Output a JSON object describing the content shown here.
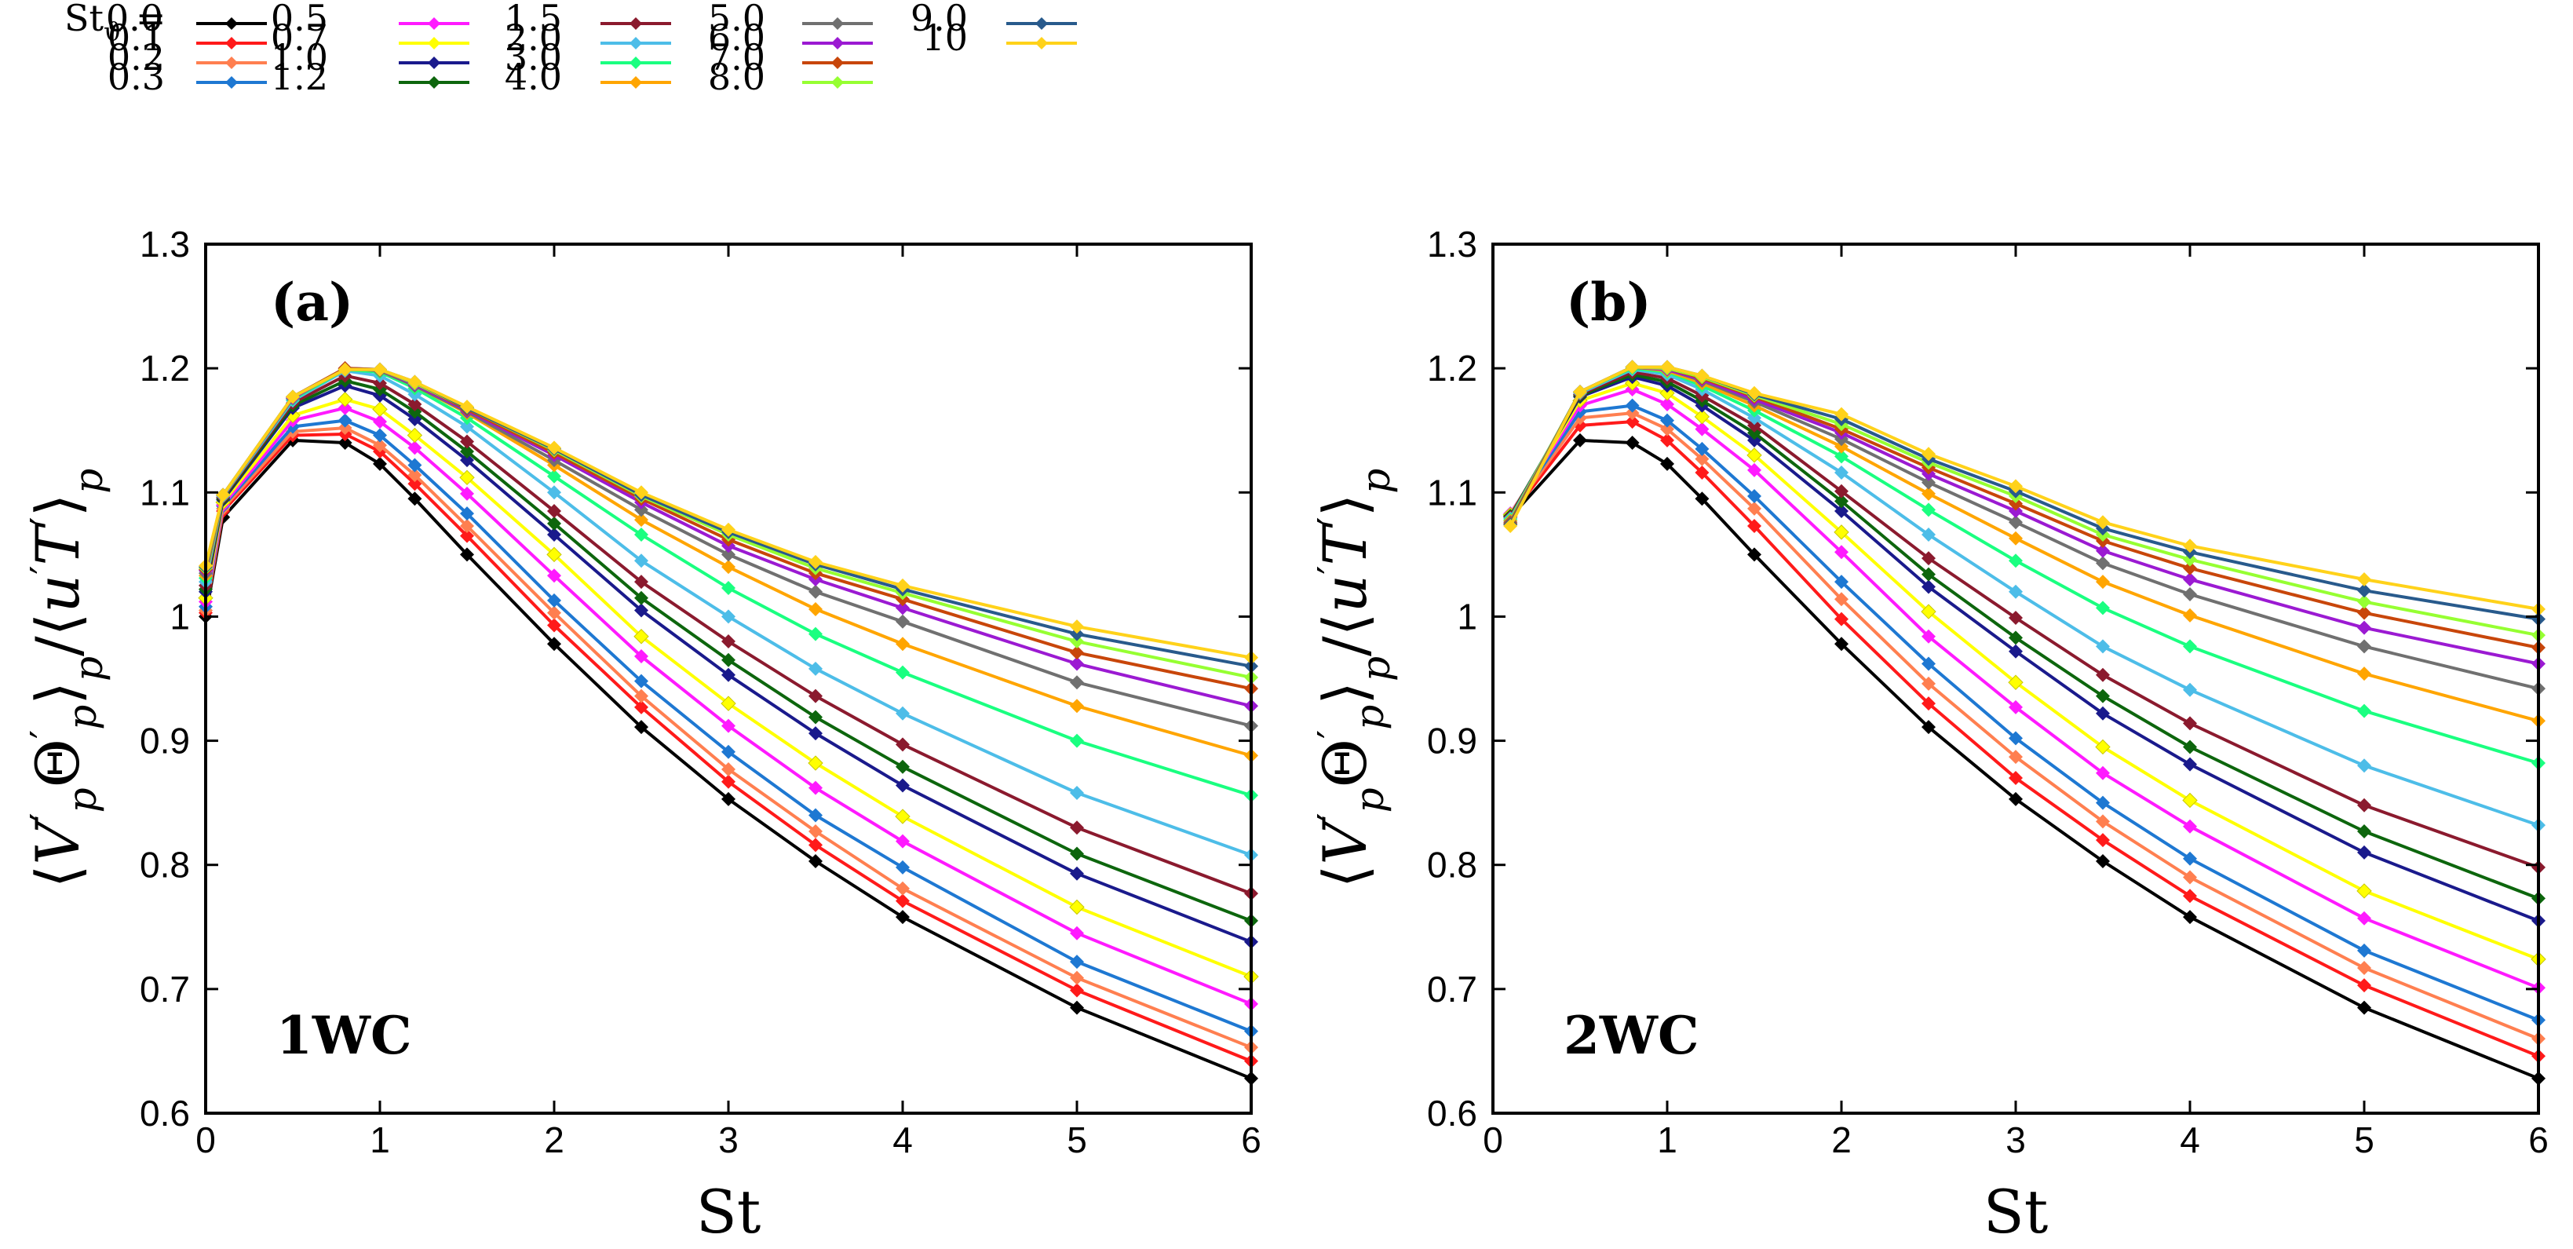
{
  "chart_data": {
    "type": "line",
    "legend_title": "St",
    "legend_subscript": "ϑ",
    "legend_equals": "=",
    "series_names": [
      "0.0",
      "0.1",
      "0.2",
      "0.3",
      "0.5",
      "0.7",
      "1.0",
      "1.2",
      "1.5",
      "2.0",
      "3.0",
      "4.0",
      "5.0",
      "6.0",
      "7.0",
      "8.0",
      "9.0",
      "10"
    ],
    "series_colors": [
      "#000000",
      "#ff1a1a",
      "#ff7f50",
      "#1e78d2",
      "#ff1aff",
      "#ffff00",
      "#1a1a8c",
      "#0d660d",
      "#8b1a2e",
      "#4dbde8",
      "#1aff80",
      "#ffa500",
      "#707070",
      "#9b1ad2",
      "#c8460a",
      "#96ff32",
      "#285a8c",
      "#ffd21a"
    ],
    "ylim": [
      0.6,
      1.3
    ],
    "xlim": [
      0,
      6
    ],
    "xticks": [
      0,
      1,
      2,
      3,
      4,
      5,
      6
    ],
    "yticks": [
      0.6,
      0.7,
      0.8,
      0.9,
      1.0,
      1.1,
      1.2,
      1.3
    ],
    "xtick_labels": [
      "0",
      "1",
      "2",
      "3",
      "4",
      "5",
      "6"
    ],
    "ytick_labels": [
      "0.6",
      "0.7",
      "0.8",
      "0.9",
      "1",
      "1.1",
      "1.2",
      "1.3"
    ],
    "xlabel": "St",
    "ylabel_parts": [
      "⟨",
      "V",
      "′",
      "p",
      "Θ",
      "′",
      "p",
      "⟩",
      "p",
      "/",
      "⟨",
      "u",
      "′",
      "T",
      "′",
      "⟩",
      "p"
    ],
    "panels": [
      {
        "id": "a",
        "label": "(a)",
        "case_label": "1WC",
        "x": [
          0,
          0.1,
          0.5,
          0.8,
          1.0,
          1.2,
          1.5,
          2.0,
          2.5,
          3.0,
          3.5,
          4.0,
          5.0,
          6.0
        ],
        "series": [
          [
            1.0,
            1.08,
            1.142,
            1.14,
            1.123,
            1.095,
            1.05,
            0.978,
            0.911,
            0.853,
            0.803,
            0.758,
            0.685,
            0.628
          ],
          [
            1.003,
            1.085,
            1.146,
            1.147,
            1.133,
            1.107,
            1.065,
            0.993,
            0.927,
            0.867,
            0.816,
            0.771,
            0.699,
            0.642
          ],
          [
            1.005,
            1.087,
            1.149,
            1.152,
            1.138,
            1.114,
            1.073,
            1.003,
            0.936,
            0.877,
            0.827,
            0.781,
            0.709,
            0.653
          ],
          [
            1.008,
            1.089,
            1.153,
            1.158,
            1.146,
            1.122,
            1.083,
            1.013,
            0.948,
            0.891,
            0.84,
            0.798,
            0.722,
            0.666
          ],
          [
            1.012,
            1.09,
            1.158,
            1.168,
            1.157,
            1.136,
            1.099,
            1.033,
            0.968,
            0.912,
            0.862,
            0.819,
            0.745,
            0.688
          ],
          [
            1.015,
            1.092,
            1.162,
            1.175,
            1.167,
            1.146,
            1.112,
            1.05,
            0.984,
            0.93,
            0.882,
            0.839,
            0.766,
            0.71
          ],
          [
            1.02,
            1.094,
            1.168,
            1.186,
            1.178,
            1.159,
            1.126,
            1.066,
            1.005,
            0.953,
            0.906,
            0.864,
            0.793,
            0.738
          ],
          [
            1.022,
            1.095,
            1.17,
            1.19,
            1.183,
            1.165,
            1.133,
            1.075,
            1.015,
            0.965,
            0.919,
            0.879,
            0.809,
            0.755
          ],
          [
            1.025,
            1.096,
            1.172,
            1.194,
            1.188,
            1.171,
            1.141,
            1.085,
            1.028,
            0.98,
            0.936,
            0.897,
            0.83,
            0.777
          ],
          [
            1.028,
            1.097,
            1.174,
            1.198,
            1.194,
            1.179,
            1.153,
            1.1,
            1.045,
            1.0,
            0.958,
            0.922,
            0.858,
            0.808
          ],
          [
            1.031,
            1.098,
            1.175,
            1.199,
            1.197,
            1.184,
            1.16,
            1.113,
            1.066,
            1.023,
            0.986,
            0.955,
            0.9,
            0.856
          ],
          [
            1.033,
            1.098,
            1.176,
            1.2,
            1.198,
            1.186,
            1.164,
            1.122,
            1.078,
            1.04,
            1.006,
            0.978,
            0.928,
            0.888
          ],
          [
            1.035,
            1.098,
            1.176,
            1.2,
            1.198,
            1.186,
            1.165,
            1.126,
            1.086,
            1.05,
            1.02,
            0.996,
            0.947,
            0.912
          ],
          [
            1.037,
            1.098,
            1.176,
            1.2,
            1.199,
            1.187,
            1.166,
            1.13,
            1.092,
            1.057,
            1.03,
            1.007,
            0.962,
            0.928
          ],
          [
            1.038,
            1.098,
            1.177,
            1.2,
            1.199,
            1.188,
            1.167,
            1.132,
            1.095,
            1.062,
            1.035,
            1.014,
            0.971,
            0.942
          ],
          [
            1.039,
            1.098,
            1.177,
            1.199,
            1.199,
            1.188,
            1.168,
            1.134,
            1.097,
            1.066,
            1.039,
            1.019,
            0.98,
            0.951
          ],
          [
            1.04,
            1.098,
            1.177,
            1.199,
            1.199,
            1.189,
            1.168,
            1.135,
            1.098,
            1.068,
            1.042,
            1.022,
            0.986,
            0.96
          ],
          [
            1.041,
            1.098,
            1.177,
            1.199,
            1.199,
            1.189,
            1.169,
            1.136,
            1.1,
            1.07,
            1.044,
            1.025,
            0.992,
            0.967
          ]
        ]
      },
      {
        "id": "b",
        "label": "(b)",
        "case_label": "2WC",
        "x": [
          0.1,
          0.5,
          0.8,
          1.0,
          1.2,
          1.5,
          2.0,
          2.5,
          3.0,
          3.5,
          4.0,
          5.0,
          6.0
        ],
        "series": [
          [
            1.08,
            1.142,
            1.14,
            1.123,
            1.095,
            1.05,
            0.978,
            0.911,
            0.853,
            0.803,
            0.758,
            0.685,
            0.628
          ],
          [
            1.081,
            1.154,
            1.157,
            1.142,
            1.116,
            1.073,
            0.998,
            0.93,
            0.87,
            0.82,
            0.775,
            0.703,
            0.646
          ],
          [
            1.082,
            1.16,
            1.164,
            1.151,
            1.127,
            1.087,
            1.014,
            0.946,
            0.887,
            0.835,
            0.79,
            0.717,
            0.66
          ],
          [
            1.083,
            1.165,
            1.17,
            1.158,
            1.135,
            1.097,
            1.028,
            0.962,
            0.902,
            0.85,
            0.805,
            0.731,
            0.675
          ],
          [
            1.083,
            1.17,
            1.183,
            1.171,
            1.151,
            1.118,
            1.052,
            0.984,
            0.927,
            0.874,
            0.831,
            0.757,
            0.701
          ],
          [
            1.082,
            1.174,
            1.188,
            1.18,
            1.161,
            1.13,
            1.068,
            1.004,
            0.947,
            0.895,
            0.852,
            0.779,
            0.724
          ],
          [
            1.081,
            1.177,
            1.193,
            1.186,
            1.17,
            1.142,
            1.085,
            1.024,
            0.972,
            0.922,
            0.881,
            0.81,
            0.755
          ],
          [
            1.081,
            1.178,
            1.195,
            1.189,
            1.174,
            1.148,
            1.093,
            1.034,
            0.983,
            0.936,
            0.895,
            0.827,
            0.773
          ],
          [
            1.08,
            1.179,
            1.197,
            1.192,
            1.178,
            1.154,
            1.101,
            1.047,
            0.999,
            0.953,
            0.914,
            0.848,
            0.798
          ],
          [
            1.079,
            1.18,
            1.199,
            1.195,
            1.183,
            1.16,
            1.116,
            1.066,
            1.02,
            0.976,
            0.941,
            0.88,
            0.832
          ],
          [
            1.078,
            1.181,
            1.2,
            1.197,
            1.186,
            1.166,
            1.129,
            1.086,
            1.045,
            1.007,
            0.976,
            0.924,
            0.882
          ],
          [
            1.077,
            1.181,
            1.201,
            1.198,
            1.188,
            1.17,
            1.137,
            1.099,
            1.063,
            1.028,
            1.001,
            0.954,
            0.916
          ],
          [
            1.076,
            1.181,
            1.201,
            1.199,
            1.19,
            1.173,
            1.143,
            1.108,
            1.076,
            1.043,
            1.018,
            0.976,
            0.942
          ],
          [
            1.075,
            1.181,
            1.201,
            1.199,
            1.191,
            1.175,
            1.148,
            1.115,
            1.085,
            1.053,
            1.03,
            0.991,
            0.962
          ],
          [
            1.075,
            1.181,
            1.201,
            1.2,
            1.192,
            1.177,
            1.151,
            1.12,
            1.091,
            1.061,
            1.039,
            1.003,
            0.975
          ],
          [
            1.074,
            1.181,
            1.201,
            1.2,
            1.193,
            1.178,
            1.155,
            1.124,
            1.097,
            1.066,
            1.046,
            1.012,
            0.985
          ],
          [
            1.074,
            1.181,
            1.201,
            1.201,
            1.194,
            1.179,
            1.159,
            1.127,
            1.101,
            1.071,
            1.052,
            1.021,
            0.998
          ],
          [
            1.073,
            1.181,
            1.201,
            1.201,
            1.194,
            1.18,
            1.163,
            1.131,
            1.105,
            1.076,
            1.057,
            1.03,
            1.006
          ]
        ]
      }
    ]
  }
}
